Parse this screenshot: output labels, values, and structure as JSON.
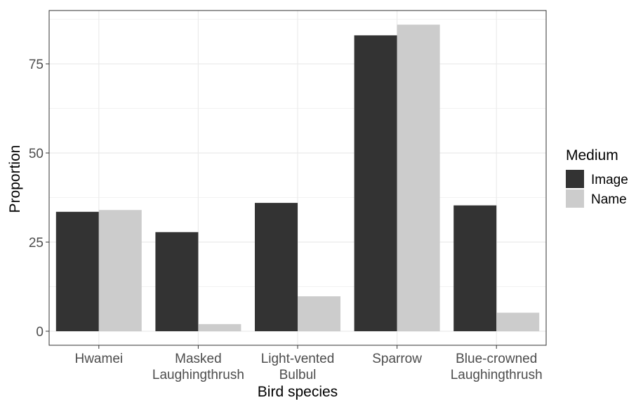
{
  "chart_data": {
    "type": "bar",
    "xlabel": "Bird species",
    "ylabel": "Proportion",
    "categories": [
      [
        "Hwamei"
      ],
      [
        "Masked",
        "Laughingthrush"
      ],
      [
        "Light-vented",
        "Bulbul"
      ],
      [
        "Sparrow"
      ],
      [
        "Blue-crowned",
        "Laughingthrush"
      ]
    ],
    "series": [
      {
        "name": "Image",
        "color": "#333333",
        "values": [
          33.5,
          27.8,
          36.0,
          83.0,
          35.3
        ]
      },
      {
        "name": "Name",
        "color": "#cccccc",
        "values": [
          34.0,
          2.0,
          9.8,
          86.0,
          5.2
        ]
      }
    ],
    "ylim": [
      0,
      90
    ],
    "yticks": [
      0,
      25,
      50,
      75
    ],
    "ytick_labels": [
      "0",
      "25",
      "50",
      "75"
    ],
    "grid": true,
    "legend": {
      "title": "Medium",
      "position": "right"
    }
  }
}
